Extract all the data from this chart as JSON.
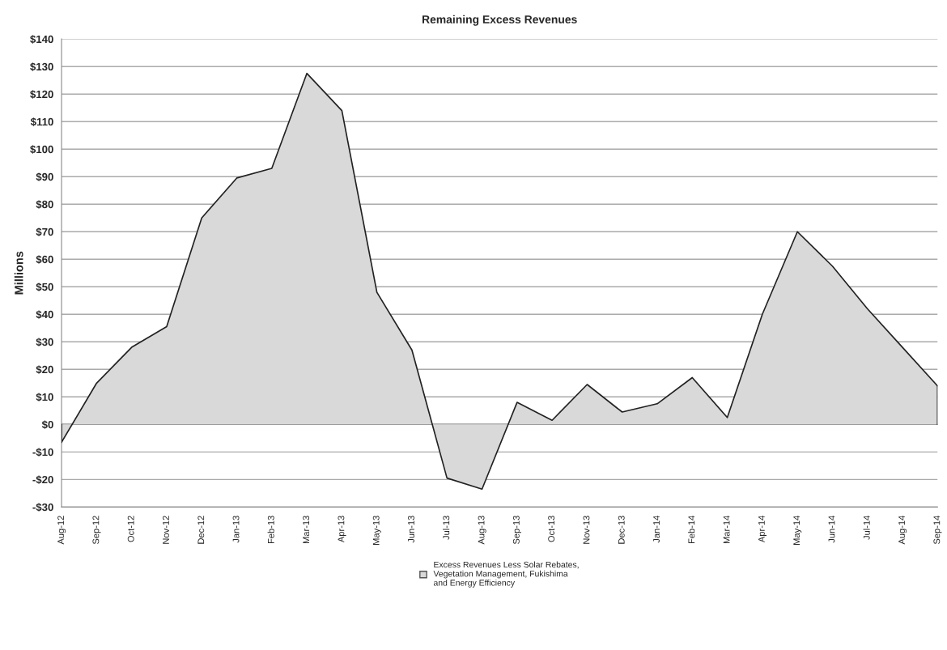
{
  "chart_data": {
    "type": "area",
    "title": "Remaining Excess Revenues",
    "ylabel": "Millions",
    "categories": [
      "Aug-12",
      "Sep-12",
      "Oct-12",
      "Nov-12",
      "Dec-12",
      "Jan-13",
      "Feb-13",
      "Mar-13",
      "Apr-13",
      "May-13",
      "Jun-13",
      "Jul-13",
      "Aug-13",
      "Sep-13",
      "Oct-13",
      "Nov-13",
      "Dec-13",
      "Jan-14",
      "Feb-14",
      "Mar-14",
      "Apr-14",
      "May-14",
      "Jun-14",
      "Jul-14",
      "Aug-14",
      "Sep-14"
    ],
    "series": [
      {
        "name": "Excess Revenues Less Solar Rebates,\nVegetation Management, Fukishima\nand Energy Efficiency",
        "color": "#d9d9d9",
        "values": [
          -6.5,
          15,
          28,
          35.5,
          75,
          89.5,
          93,
          127.5,
          114,
          48,
          27,
          -19.5,
          -23.5,
          8,
          1.5,
          14.5,
          4.5,
          7.5,
          17,
          2.5,
          40,
          70,
          57.5,
          42,
          28,
          14
        ]
      }
    ],
    "ylim": [
      -30,
      140
    ],
    "yticks": [
      {
        "value": -30,
        "label": "-$30"
      },
      {
        "value": -20,
        "label": "-$20"
      },
      {
        "value": -10,
        "label": "-$10"
      },
      {
        "value": 0,
        "label": "$0"
      },
      {
        "value": 10,
        "label": "$10"
      },
      {
        "value": 20,
        "label": "$20"
      },
      {
        "value": 30,
        "label": "$30"
      },
      {
        "value": 40,
        "label": "$40"
      },
      {
        "value": 50,
        "label": "$50"
      },
      {
        "value": 60,
        "label": "$60"
      },
      {
        "value": 70,
        "label": "$70"
      },
      {
        "value": 80,
        "label": "$80"
      },
      {
        "value": 90,
        "label": "$90"
      },
      {
        "value": 100,
        "label": "$100"
      },
      {
        "value": 110,
        "label": "$110"
      },
      {
        "value": 120,
        "label": "$120"
      },
      {
        "value": 130,
        "label": "$130"
      },
      {
        "value": 140,
        "label": "$140"
      }
    ],
    "grid": "y",
    "legend": "bottom"
  }
}
